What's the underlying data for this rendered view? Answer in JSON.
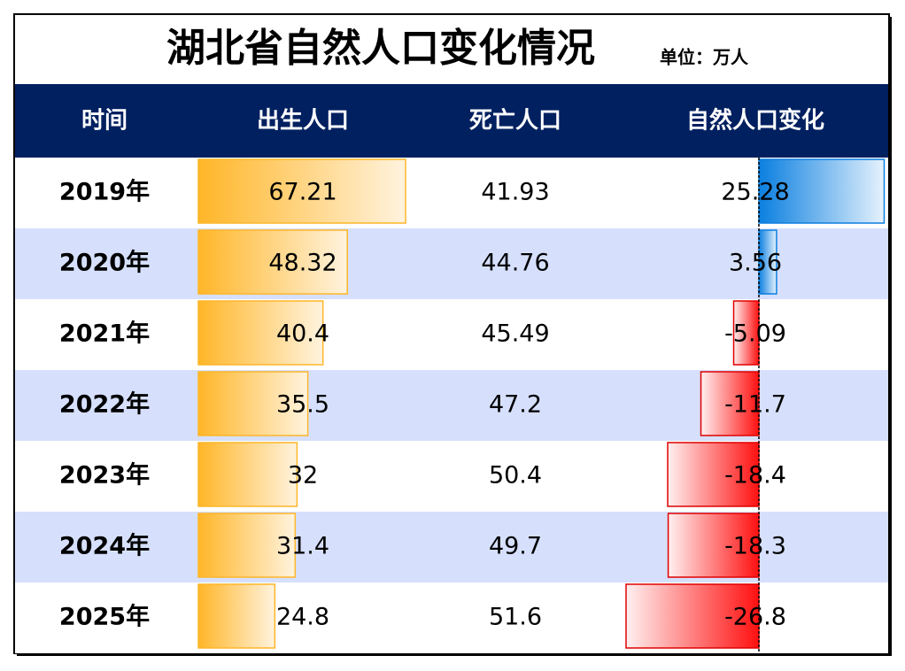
{
  "title": "湖北省自然人口变化情况",
  "unit": "单位：万人",
  "table": {
    "columns": [
      "时间",
      "出生人口",
      "死亡人口",
      "自然人口变化"
    ],
    "rows": [
      [
        "2019年",
        67.21,
        41.93,
        25.28
      ],
      [
        "2020年",
        48.32,
        44.76,
        3.56
      ],
      [
        "2021年",
        40.4,
        45.49,
        -5.09
      ],
      [
        "2022年",
        35.5,
        47.2,
        -11.7
      ],
      [
        "2023年",
        32,
        50.4,
        -18.4
      ],
      [
        "2024年",
        31.4,
        49.7,
        -18.3
      ],
      [
        "2025年",
        24.8,
        51.6,
        -26.8
      ]
    ]
  }
}
